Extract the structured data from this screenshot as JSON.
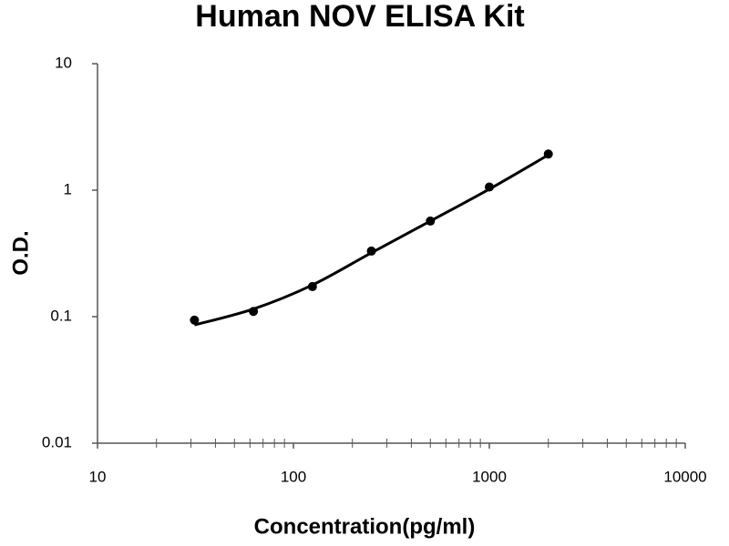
{
  "chart_data": {
    "type": "scatter",
    "title": "Human NOV ELISA Kit",
    "x_label": "Concentration(pg/ml)",
    "y_label": "O.D.",
    "xscale": "log",
    "yscale": "log",
    "xlim": [
      10,
      10000
    ],
    "ylim": [
      0.01,
      10
    ],
    "xticks": [
      10,
      100,
      1000,
      10000
    ],
    "yticks": [
      0.01,
      0.1,
      1,
      10
    ],
    "grid": false,
    "series": [
      {
        "mode": "line",
        "color": "#000000",
        "x": [
          31.25,
          62.5,
          125,
          250,
          500,
          1000,
          2000
        ],
        "values": [
          0.086,
          0.115,
          0.178,
          0.32,
          0.57,
          1.02,
          1.9
        ]
      },
      {
        "mode": "markers",
        "color": "#000000",
        "x": [
          31.25,
          62.5,
          125,
          250,
          500,
          1000,
          2000
        ],
        "values": [
          0.094,
          0.11,
          0.173,
          0.33,
          0.57,
          1.06,
          1.93
        ]
      }
    ]
  }
}
